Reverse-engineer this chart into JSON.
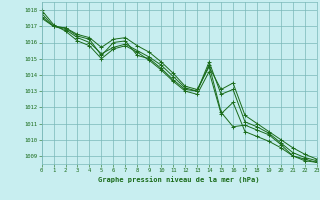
{
  "title": "Graphe pression niveau de la mer (hPa)",
  "background_color": "#c8eef0",
  "grid_color": "#7ab8b8",
  "line_color": "#1a6b1a",
  "xlim": [
    0,
    23
  ],
  "ylim": [
    1008.5,
    1018.5
  ],
  "yticks": [
    1009,
    1010,
    1011,
    1012,
    1013,
    1014,
    1015,
    1016,
    1017,
    1018
  ],
  "xticks": [
    0,
    1,
    2,
    3,
    4,
    5,
    6,
    7,
    8,
    9,
    10,
    11,
    12,
    13,
    14,
    15,
    16,
    17,
    18,
    19,
    20,
    21,
    22,
    23
  ],
  "series": [
    [
      1017.8,
      1017.0,
      1016.9,
      1016.4,
      1016.2,
      1015.2,
      1016.0,
      1016.1,
      1015.2,
      1015.0,
      1014.4,
      1013.7,
      1013.1,
      1013.0,
      1014.6,
      1011.7,
      1010.8,
      1010.9,
      1010.6,
      1010.3,
      1009.7,
      1009.0,
      1008.8,
      1008.6
    ],
    [
      1017.5,
      1017.0,
      1016.8,
      1016.3,
      1016.0,
      1015.3,
      1015.7,
      1015.9,
      1015.5,
      1015.1,
      1014.6,
      1013.9,
      1013.2,
      1013.0,
      1014.8,
      1012.8,
      1013.1,
      1011.1,
      1010.8,
      1010.4,
      1009.8,
      1009.2,
      1008.9,
      1008.7
    ],
    [
      1018.0,
      1017.1,
      1016.7,
      1016.1,
      1015.8,
      1015.0,
      1015.6,
      1015.8,
      1015.4,
      1014.9,
      1014.3,
      1013.6,
      1013.0,
      1012.8,
      1014.2,
      1011.6,
      1012.3,
      1010.5,
      1010.2,
      1009.9,
      1009.5,
      1009.0,
      1008.7,
      1008.6
    ],
    [
      1017.6,
      1017.0,
      1016.9,
      1016.5,
      1016.3,
      1015.7,
      1016.2,
      1016.3,
      1015.8,
      1015.4,
      1014.8,
      1014.1,
      1013.3,
      1013.1,
      1014.5,
      1013.1,
      1013.5,
      1011.5,
      1011.0,
      1010.5,
      1010.0,
      1009.5,
      1009.1,
      1008.8
    ]
  ]
}
